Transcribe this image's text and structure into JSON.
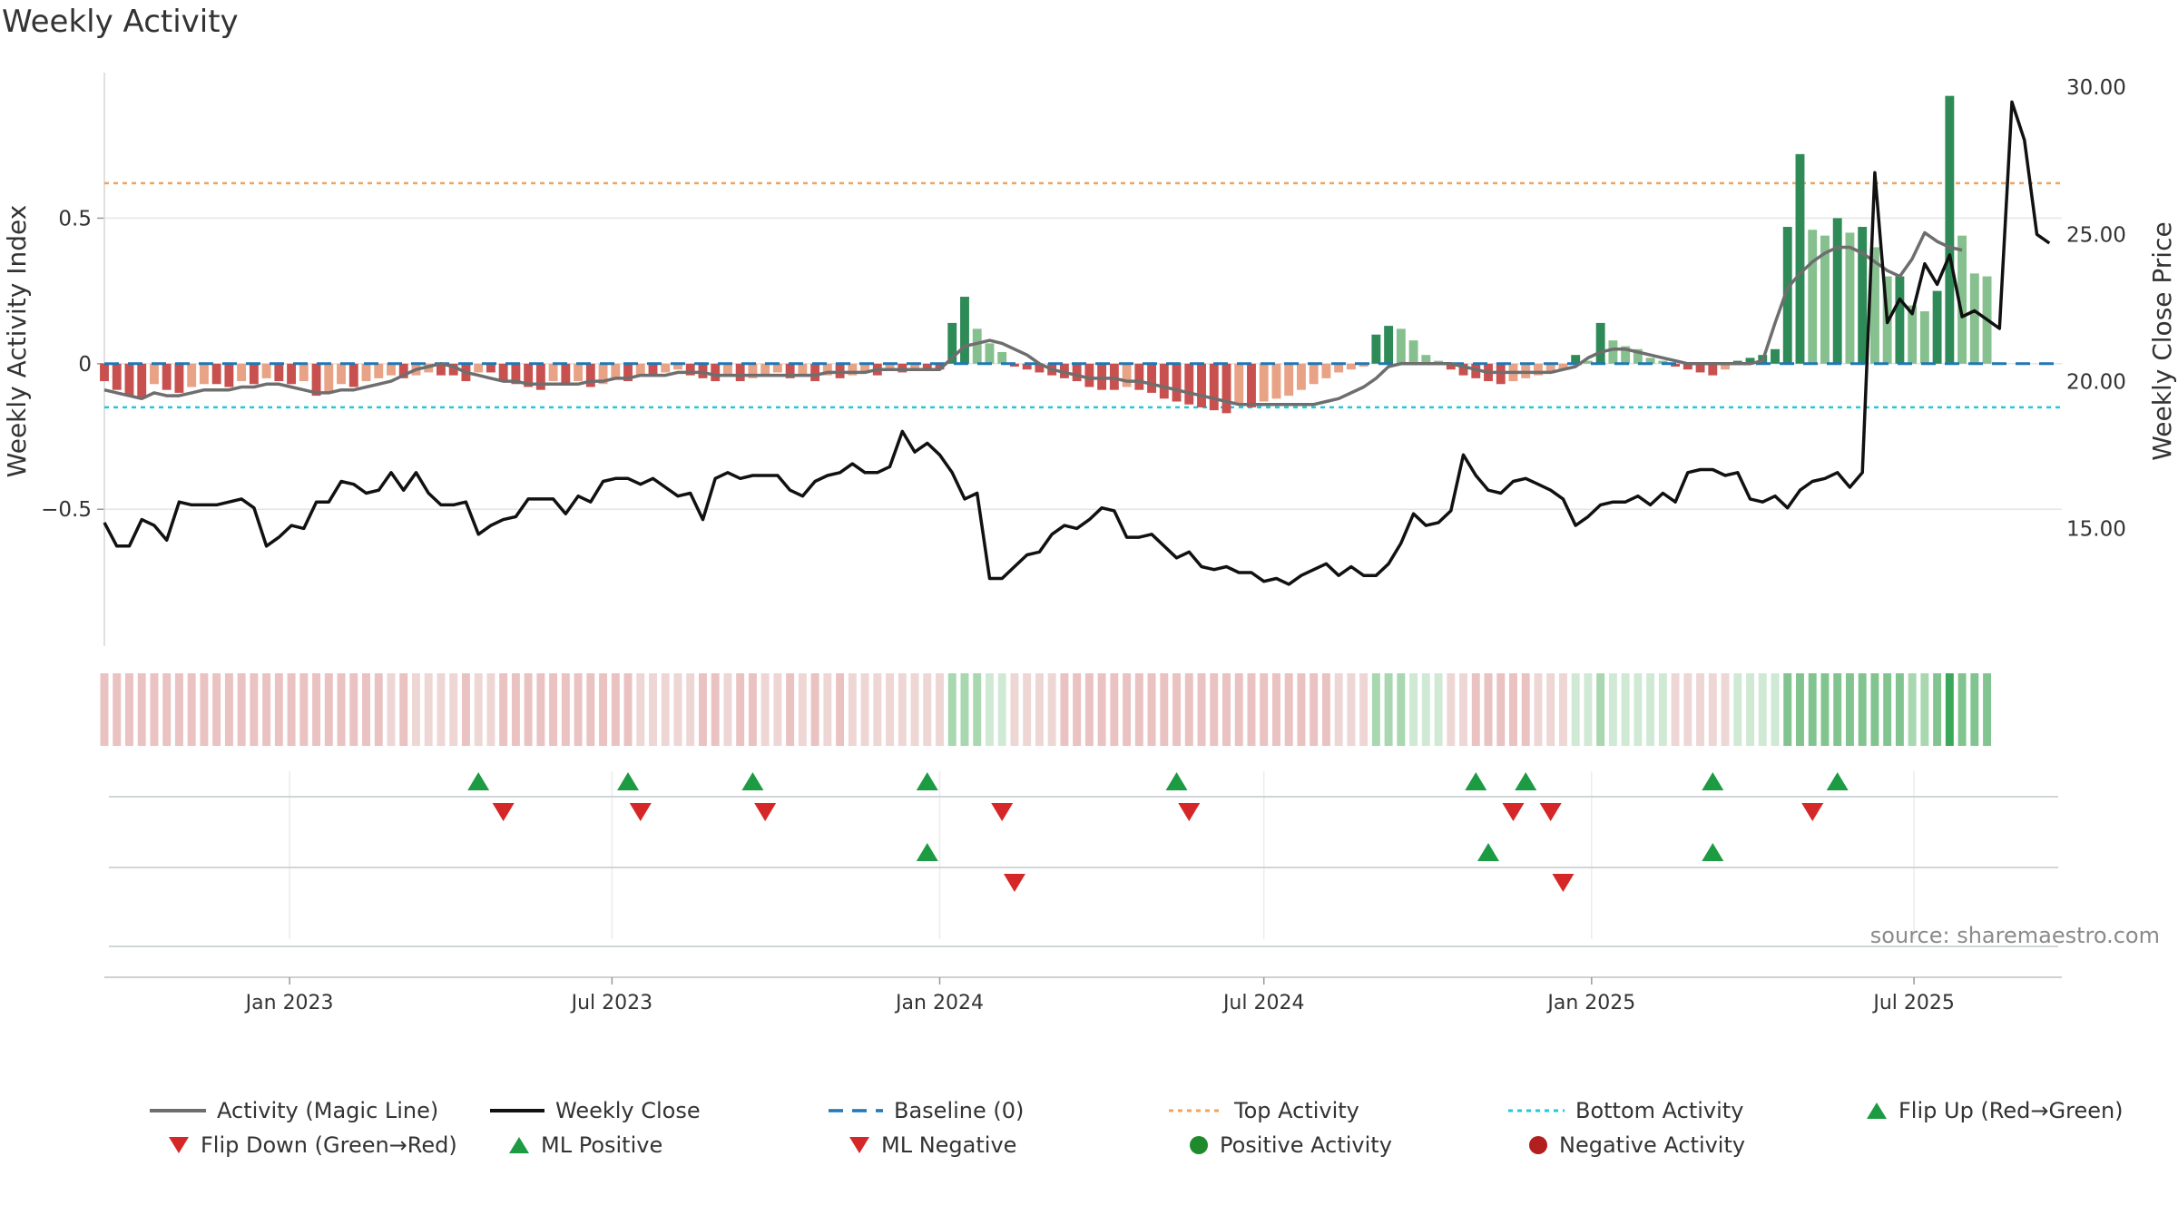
{
  "chart_data": {
    "type": "bar",
    "title": "Weekly Activity",
    "ylabel_left": "Weekly Activity Index",
    "ylabel_right": "Weekly Close Price",
    "source": "source: sharemaestro.com",
    "xlim": [
      "2022-09-19",
      "2025-09-22"
    ],
    "ylim_left": [
      -0.97,
      1.0
    ],
    "ylim_right": [
      11.0,
      30.5
    ],
    "yticks_left": [
      {
        "value": 0.5,
        "label": "0.5"
      },
      {
        "value": 0,
        "label": "0"
      },
      {
        "value": -0.5,
        "label": "−0.5"
      }
    ],
    "yticks_right": [
      {
        "value": 30,
        "label": "30.00"
      },
      {
        "value": 25,
        "label": "25.00"
      },
      {
        "value": 20,
        "label": "20.00"
      },
      {
        "value": 15,
        "label": "15.00"
      }
    ],
    "xticks": [
      {
        "date": "2023-01-01",
        "label": "Jan 2023"
      },
      {
        "date": "2023-07-01",
        "label": "Jul 2023"
      },
      {
        "date": "2024-01-01",
        "label": "Jan 2024"
      },
      {
        "date": "2024-07-01",
        "label": "Jul 2024"
      },
      {
        "date": "2025-01-01",
        "label": "Jan 2025"
      },
      {
        "date": "2025-07-01",
        "label": "Jul 2025"
      }
    ],
    "top_activity": 0.62,
    "bottom_activity": -0.15,
    "week_start": "2022-09-19",
    "weeks": 157,
    "series": [
      {
        "name": "Weekly Activity Index (bars)",
        "values": [
          -0.06,
          -0.09,
          -0.11,
          -0.12,
          -0.07,
          -0.09,
          -0.1,
          -0.08,
          -0.07,
          -0.07,
          -0.08,
          -0.06,
          -0.07,
          -0.05,
          -0.06,
          -0.07,
          -0.06,
          -0.11,
          -0.1,
          -0.07,
          -0.08,
          -0.06,
          -0.05,
          -0.04,
          -0.05,
          -0.04,
          -0.03,
          -0.04,
          -0.04,
          -0.06,
          -0.03,
          -0.03,
          -0.06,
          -0.07,
          -0.08,
          -0.09,
          -0.06,
          -0.07,
          -0.06,
          -0.08,
          -0.07,
          -0.05,
          -0.06,
          -0.04,
          -0.04,
          -0.03,
          -0.02,
          -0.04,
          -0.05,
          -0.06,
          -0.04,
          -0.06,
          -0.05,
          -0.04,
          -0.03,
          -0.05,
          -0.04,
          -0.06,
          -0.04,
          -0.05,
          -0.04,
          -0.03,
          -0.04,
          -0.02,
          -0.03,
          -0.02,
          -0.02,
          -0.02,
          0.14,
          0.23,
          0.12,
          0.07,
          0.04,
          -0.01,
          -0.02,
          -0.03,
          -0.04,
          -0.05,
          -0.06,
          -0.08,
          -0.09,
          -0.09,
          -0.08,
          -0.09,
          -0.1,
          -0.12,
          -0.13,
          -0.14,
          -0.15,
          -0.16,
          -0.17,
          -0.14,
          -0.15,
          -0.13,
          -0.12,
          -0.11,
          -0.09,
          -0.07,
          -0.05,
          -0.03,
          -0.02,
          -0.01,
          0.1,
          0.13,
          0.12,
          0.08,
          0.03,
          0.01,
          -0.02,
          -0.04,
          -0.05,
          -0.06,
          -0.07,
          -0.06,
          -0.05,
          -0.04,
          -0.03,
          -0.02,
          0.03,
          0.01,
          0.14,
          0.08,
          0.06,
          0.05,
          0.02,
          0.01,
          -0.01,
          -0.02,
          -0.03,
          -0.04,
          -0.02,
          0.01,
          0.02,
          0.03,
          0.05,
          0.47,
          0.72,
          0.46,
          0.44,
          0.5,
          0.45,
          0.47,
          0.4,
          0.3,
          0.3,
          0.2,
          0.18,
          0.25,
          0.92,
          0.44,
          0.31,
          0.3
        ]
      },
      {
        "name": "Activity (Magic Line)",
        "values": [
          -0.09,
          -0.1,
          -0.11,
          -0.12,
          -0.1,
          -0.11,
          -0.11,
          -0.1,
          -0.09,
          -0.09,
          -0.09,
          -0.08,
          -0.08,
          -0.07,
          -0.07,
          -0.08,
          -0.09,
          -0.1,
          -0.1,
          -0.09,
          -0.09,
          -0.08,
          -0.07,
          -0.06,
          -0.04,
          -0.02,
          -0.01,
          0.0,
          -0.01,
          -0.03,
          -0.04,
          -0.05,
          -0.06,
          -0.06,
          -0.07,
          -0.07,
          -0.07,
          -0.07,
          -0.07,
          -0.06,
          -0.06,
          -0.05,
          -0.05,
          -0.04,
          -0.04,
          -0.04,
          -0.03,
          -0.03,
          -0.03,
          -0.04,
          -0.04,
          -0.04,
          -0.04,
          -0.04,
          -0.04,
          -0.04,
          -0.04,
          -0.04,
          -0.03,
          -0.03,
          -0.03,
          -0.03,
          -0.02,
          -0.02,
          -0.02,
          -0.02,
          -0.02,
          -0.02,
          0.02,
          0.06,
          0.07,
          0.08,
          0.07,
          0.05,
          0.03,
          0.0,
          -0.02,
          -0.03,
          -0.04,
          -0.05,
          -0.05,
          -0.05,
          -0.06,
          -0.06,
          -0.07,
          -0.08,
          -0.09,
          -0.1,
          -0.11,
          -0.12,
          -0.13,
          -0.14,
          -0.14,
          -0.14,
          -0.14,
          -0.14,
          -0.14,
          -0.14,
          -0.13,
          -0.12,
          -0.1,
          -0.08,
          -0.05,
          -0.01,
          0.0,
          0.0,
          0.0,
          0.0,
          0.0,
          -0.01,
          -0.02,
          -0.03,
          -0.03,
          -0.03,
          -0.03,
          -0.03,
          -0.03,
          -0.02,
          -0.01,
          0.02,
          0.04,
          0.05,
          0.05,
          0.04,
          0.03,
          0.02,
          0.01,
          0.0,
          0.0,
          0.0,
          0.0,
          0.0,
          0.0,
          0.01,
          0.14,
          0.26,
          0.31,
          0.35,
          0.38,
          0.4,
          0.4,
          0.38,
          0.35,
          0.32,
          0.3,
          0.36,
          0.45,
          0.42,
          0.4,
          0.39
        ]
      },
      {
        "name": "Weekly Close",
        "values": [
          15.2,
          14.4,
          14.4,
          15.3,
          15.1,
          14.6,
          15.9,
          15.8,
          15.8,
          15.8,
          15.9,
          16.0,
          15.7,
          14.4,
          14.7,
          15.1,
          15.0,
          15.9,
          15.9,
          16.6,
          16.5,
          16.2,
          16.3,
          16.9,
          16.3,
          16.9,
          16.2,
          15.8,
          15.8,
          15.9,
          14.8,
          15.1,
          15.3,
          15.4,
          16.0,
          16.0,
          16.0,
          15.5,
          16.1,
          15.9,
          16.6,
          16.7,
          16.7,
          16.5,
          16.7,
          16.4,
          16.1,
          16.2,
          15.3,
          16.7,
          16.9,
          16.7,
          16.8,
          16.8,
          16.8,
          16.3,
          16.1,
          16.6,
          16.8,
          16.9,
          17.2,
          16.9,
          16.9,
          17.1,
          18.3,
          17.6,
          17.9,
          17.5,
          16.9,
          16.0,
          16.2,
          13.3,
          13.3,
          13.7,
          14.1,
          14.2,
          14.8,
          15.1,
          15.0,
          15.3,
          15.7,
          15.6,
          14.7,
          14.7,
          14.8,
          14.4,
          14.0,
          14.2,
          13.7,
          13.6,
          13.7,
          13.5,
          13.5,
          13.2,
          13.3,
          13.1,
          13.4,
          13.6,
          13.8,
          13.4,
          13.7,
          13.4,
          13.4,
          13.8,
          14.5,
          15.5,
          15.1,
          15.2,
          15.6,
          17.5,
          16.8,
          16.3,
          16.2,
          16.6,
          16.7,
          16.5,
          16.3,
          16.0,
          15.1,
          15.4,
          15.8,
          15.9,
          15.9,
          16.1,
          15.8,
          16.2,
          15.9,
          16.9,
          17.0,
          17.0,
          16.8,
          16.9,
          16.0,
          15.9,
          16.1,
          15.7,
          16.3,
          16.6,
          16.7,
          16.9,
          16.4,
          16.9,
          27.1,
          22.0,
          22.8,
          22.3,
          24.0,
          23.3,
          24.3,
          22.2,
          22.4,
          22.1,
          21.8,
          29.5,
          28.2,
          25.0,
          24.7
        ]
      }
    ],
    "flip_up": [
      "2023-04-17",
      "2023-07-10",
      "2023-09-18",
      "2023-12-25",
      "2024-05-13",
      "2024-10-28",
      "2024-11-25",
      "2025-03-10",
      "2025-05-19"
    ],
    "flip_down": [
      "2023-05-01",
      "2023-07-17",
      "2023-09-25",
      "2024-02-05",
      "2024-05-20",
      "2024-11-18",
      "2024-12-09",
      "2025-05-05"
    ],
    "ml_positive": [
      "2023-12-25",
      "2024-11-04",
      "2025-03-10"
    ],
    "ml_negative": [
      "2024-02-12",
      "2024-12-16"
    ],
    "colors": {
      "bar_red_dark": "#c8514f",
      "bar_red_light": "#e8a285",
      "bar_green_dark": "#2e8b57",
      "bar_green_light": "#86c08e",
      "magic_line": "#6e6e6e",
      "close_line": "#111111",
      "baseline": "#1f77b4",
      "top_line": "#f0a35e",
      "bottom_line": "#22c8d8",
      "flip_up": "#1d9b43",
      "flip_down": "#d62728",
      "positive_activity": "#1f8a2c",
      "negative_activity": "#b11f1f"
    },
    "legend": [
      {
        "label": "Activity (Magic Line)",
        "icon": "magic-line-swatch"
      },
      {
        "label": "Weekly Close",
        "icon": "close-line-swatch"
      },
      {
        "label": "Baseline (0)",
        "icon": "baseline-swatch"
      },
      {
        "label": "Top Activity",
        "icon": "top-activity-swatch"
      },
      {
        "label": "Bottom Activity",
        "icon": "bottom-activity-swatch"
      },
      {
        "label": "Flip Up (Red→Green)",
        "icon": "triangle-up-icon"
      },
      {
        "label": "Flip Down (Green→Red)",
        "icon": "triangle-down-icon"
      },
      {
        "label": "ML Positive",
        "icon": "triangle-up-icon"
      },
      {
        "label": "ML Negative",
        "icon": "triangle-down-icon"
      },
      {
        "label": "Positive Activity",
        "icon": "circle-icon"
      },
      {
        "label": "Negative Activity",
        "icon": "circle-icon"
      }
    ]
  }
}
